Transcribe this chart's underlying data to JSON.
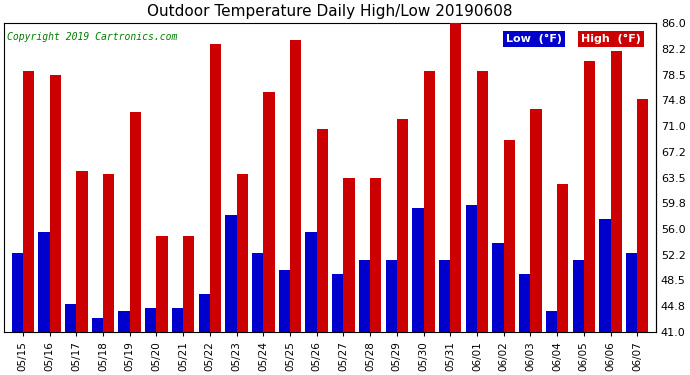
{
  "title": "Outdoor Temperature Daily High/Low 20190608",
  "copyright": "Copyright 2019 Cartronics.com",
  "legend_low": "Low  (°F)",
  "legend_high": "High  (°F)",
  "low_color": "#0000cc",
  "high_color": "#cc0000",
  "background_color": "#ffffff",
  "grid_color": "#c8c8c8",
  "ylim": [
    41.0,
    86.0
  ],
  "yticks": [
    41.0,
    44.8,
    48.5,
    52.2,
    56.0,
    59.8,
    63.5,
    67.2,
    71.0,
    74.8,
    78.5,
    82.2,
    86.0
  ],
  "dates": [
    "05/15",
    "05/16",
    "05/17",
    "05/18",
    "05/19",
    "05/20",
    "05/21",
    "05/22",
    "05/23",
    "05/24",
    "05/25",
    "05/26",
    "05/27",
    "05/28",
    "05/29",
    "05/30",
    "05/31",
    "06/01",
    "06/02",
    "06/03",
    "06/04",
    "06/05",
    "06/06",
    "06/07"
  ],
  "highs": [
    79.0,
    78.5,
    64.5,
    64.0,
    73.0,
    55.0,
    55.0,
    83.0,
    64.0,
    76.0,
    83.5,
    70.5,
    63.5,
    63.5,
    72.0,
    79.0,
    86.0,
    79.0,
    69.0,
    73.5,
    62.5,
    80.5,
    82.0,
    75.0
  ],
  "lows": [
    52.5,
    55.5,
    45.0,
    43.0,
    44.0,
    44.5,
    44.5,
    46.5,
    58.0,
    52.5,
    50.0,
    55.5,
    49.5,
    51.5,
    51.5,
    59.0,
    51.5,
    59.5,
    54.0,
    49.5,
    44.0,
    51.5,
    57.5,
    52.5
  ]
}
